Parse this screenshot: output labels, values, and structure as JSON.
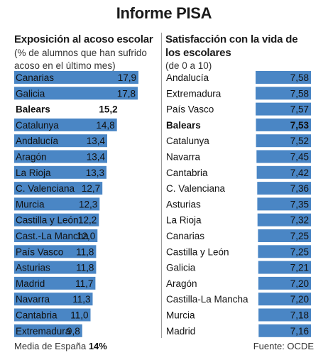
{
  "title": "Informe PISA",
  "footer": {
    "mean_label": "Media de España",
    "mean_value": "14%",
    "source": "Fuente: OCDE"
  },
  "colors": {
    "bar": "#4a86c5",
    "highlight_text": "#111111"
  },
  "chart_data": [
    {
      "type": "bar",
      "orientation": "horizontal",
      "title": "Exposición al acoso escolar",
      "subtitle": "(% de alumnos que han sufrido acoso en el último mes)",
      "xlim": [
        0,
        17.9
      ],
      "highlight": "Balears",
      "categories": [
        "Canarias",
        "Galicia",
        "Balears",
        "Catalunya",
        "Andalucía",
        "Aragón",
        "La Rioja",
        "C. Valenciana",
        "Murcia",
        "Castilla y León",
        "Cast.-La Mancha",
        "País Vasco",
        "Asturias",
        "Madrid",
        "Navarra",
        "Cantabria",
        "Extremadura"
      ],
      "values": [
        17.9,
        17.8,
        15.2,
        14.8,
        13.4,
        13.4,
        13.3,
        12.7,
        12.3,
        12.2,
        12.0,
        11.8,
        11.8,
        11.7,
        11.3,
        11.0,
        9.8
      ],
      "value_labels": [
        "17,9",
        "17,8",
        "15,2",
        "14,8",
        "13,4",
        "13,4",
        "13,3",
        "12,7",
        "12,3",
        "12,2",
        "12,0",
        "11,8",
        "11,8",
        "11,7",
        "11,3",
        "11,0",
        "9,8"
      ]
    },
    {
      "type": "bar",
      "orientation": "horizontal",
      "title": "Satisfacción con la vida de los escolares",
      "subtitle": "(de 0 a 10)",
      "xlim": [
        0,
        10
      ],
      "highlight": "Balears",
      "categories": [
        "Andalucía",
        "Extremadura",
        "País Vasco",
        "Balears",
        "Catalunya",
        "Navarra",
        "Cantabria",
        "C. Valenciana",
        "Asturias",
        "La Rioja",
        "Canarias",
        "Castilla y León",
        "Galicia",
        "Aragón",
        "Castilla-La Mancha",
        "Murcia",
        "Madrid"
      ],
      "values": [
        7.58,
        7.58,
        7.57,
        7.53,
        7.52,
        7.45,
        7.42,
        7.36,
        7.35,
        7.32,
        7.25,
        7.25,
        7.21,
        7.2,
        7.2,
        7.18,
        7.16
      ],
      "value_labels": [
        "7,58",
        "7,58",
        "7,57",
        "7,53",
        "7,52",
        "7,45",
        "7,42",
        "7,36",
        "7,35",
        "7,32",
        "7,25",
        "7,25",
        "7,21",
        "7,20",
        "7,20",
        "7,18",
        "7,16"
      ]
    }
  ]
}
